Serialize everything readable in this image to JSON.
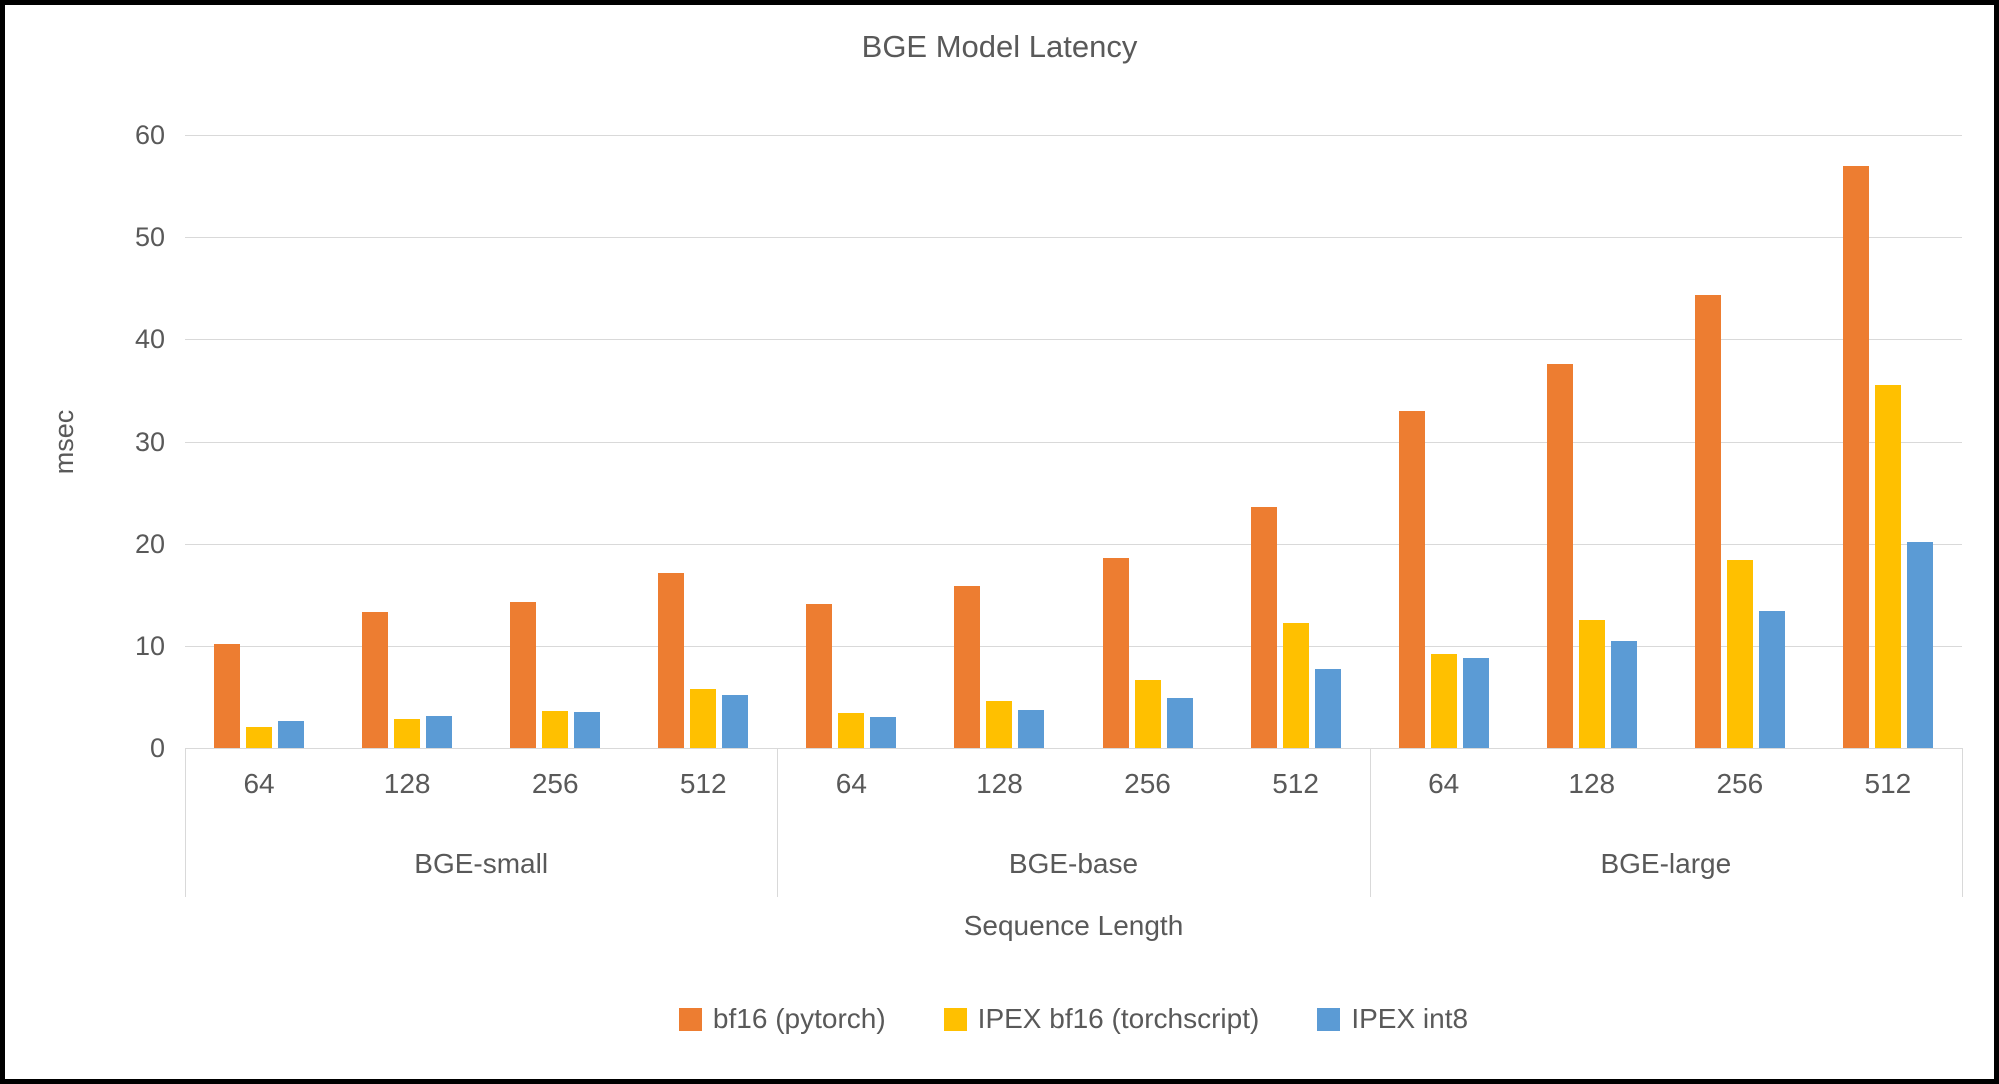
{
  "title": "BGE Model Latency",
  "y_axis": {
    "label": "msec",
    "ticks": [
      "60",
      "50",
      "40",
      "30",
      "20",
      "10",
      "0"
    ],
    "max": 60
  },
  "x_axis": {
    "label": "Sequence Length"
  },
  "legend": [
    {
      "label": "bf16 (pytorch)",
      "color": "#ED7D31"
    },
    {
      "label": "IPEX bf16 (torchscript)",
      "color": "#FFC000"
    },
    {
      "label": "IPEX int8",
      "color": "#5B9BD5"
    }
  ],
  "colors": {
    "grid": "#d9d9d9",
    "text": "#595959"
  },
  "chart_data": {
    "type": "bar",
    "title": "BGE Model Latency",
    "xlabel": "Sequence Length",
    "ylabel": "msec",
    "ylim": [
      0,
      60
    ],
    "grid": true,
    "legend_position": "bottom",
    "groups": [
      "BGE-small",
      "BGE-base",
      "BGE-large"
    ],
    "categories": [
      "64",
      "128",
      "256",
      "512"
    ],
    "series": [
      {
        "name": "bf16 (pytorch)",
        "color": "#ED7D31",
        "values": [
          [
            10.2,
            13.3,
            14.3,
            17.1
          ],
          [
            14.1,
            15.9,
            18.6,
            23.6
          ],
          [
            33.0,
            37.6,
            44.3,
            57.0
          ]
        ]
      },
      {
        "name": "IPEX bf16 (torchscript)",
        "color": "#FFC000",
        "values": [
          [
            2.1,
            2.8,
            3.6,
            5.8
          ],
          [
            3.4,
            4.6,
            6.7,
            12.2
          ],
          [
            9.2,
            12.5,
            18.4,
            35.5
          ]
        ]
      },
      {
        "name": "IPEX int8",
        "color": "#5B9BD5",
        "values": [
          [
            2.6,
            3.1,
            3.5,
            5.2
          ],
          [
            3.0,
            3.7,
            4.9,
            7.7
          ],
          [
            8.8,
            10.5,
            13.4,
            20.2
          ]
        ]
      }
    ]
  }
}
